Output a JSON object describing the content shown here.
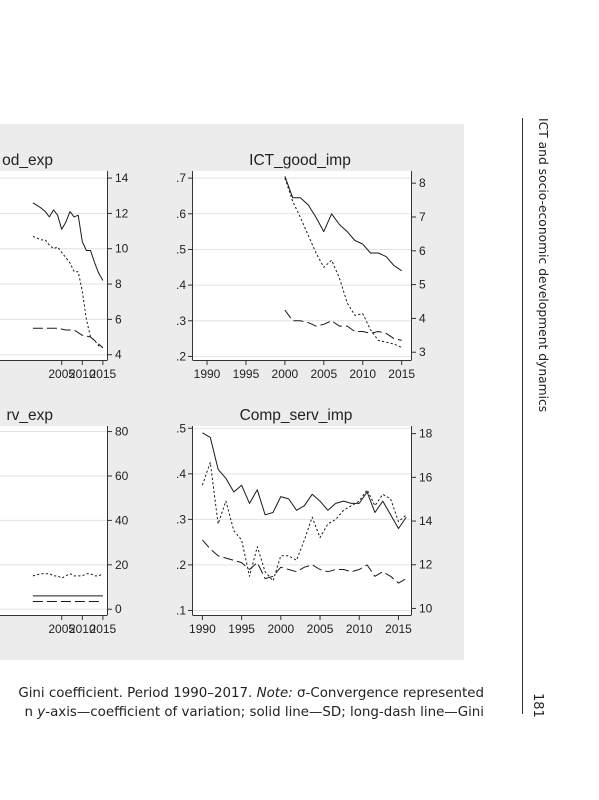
{
  "page": {
    "running_head": "ICT and socio-economic development dynamics",
    "page_number": "181",
    "caption_line1_pre": " Gini coefficient. Period 1990–2017. ",
    "caption_note_label": "Note:",
    "caption_line1_post": " σ-Convergence represented",
    "caption_line2_pre": "n ",
    "caption_axis_label": "y",
    "caption_line2_post": "-axis—coefficient of variation; solid line—SD; long-dash line—Gini"
  },
  "colors": {
    "panel_bg": "#ececec",
    "plot_bg": "#ffffff",
    "line": "#1a1a1a",
    "grid": "#e2e2e2"
  },
  "chart_data": [
    {
      "type": "line",
      "title": "od_exp",
      "clipped": true,
      "xlim": [
        1990,
        2016
      ],
      "x_ticks": [
        "2005",
        "2010",
        "2015"
      ],
      "x_tick_values": [
        2005,
        2010,
        2015
      ],
      "ylim_right": [
        3.7,
        14.4
      ],
      "y_right_ticks": [
        "4",
        "6",
        "8",
        "10",
        "12",
        "14"
      ],
      "y_right_tick_values": [
        4,
        6,
        8,
        10,
        12,
        14
      ],
      "series": [
        {
          "style": "solid",
          "axis": "right",
          "x": [
            1998,
            2000,
            2001,
            2002,
            2003,
            2004,
            2005,
            2006,
            2007,
            2008,
            2009,
            2010,
            2011,
            2012,
            2013,
            2014,
            2015
          ],
          "values": [
            12.6,
            12.3,
            12.1,
            11.8,
            12.2,
            11.9,
            11.1,
            11.5,
            12.1,
            11.8,
            11.9,
            10.4,
            9.9,
            9.9,
            9.2,
            8.6,
            8.2
          ]
        },
        {
          "style": "dotted",
          "axis": "right",
          "x": [
            1998,
            2000,
            2001,
            2002,
            2003,
            2004,
            2005,
            2006,
            2007,
            2008,
            2009,
            2010,
            2011,
            2012,
            2013,
            2014,
            2015
          ],
          "values": [
            10.7,
            10.5,
            10.5,
            10.2,
            10.0,
            10.1,
            9.8,
            9.5,
            9.2,
            8.7,
            8.7,
            7.6,
            6.0,
            5.0,
            4.8,
            4.5,
            4.4
          ]
        },
        {
          "style": "longdash",
          "axis": "right",
          "x": [
            1998,
            2000,
            2002,
            2004,
            2006,
            2008,
            2010,
            2012,
            2014,
            2015
          ],
          "values": [
            5.5,
            5.5,
            5.5,
            5.5,
            5.4,
            5.4,
            5.1,
            5.0,
            4.6,
            4.4
          ]
        }
      ]
    },
    {
      "type": "line",
      "title": "ICT_good_imp",
      "xlim": [
        1988.2,
        2016.2
      ],
      "x_ticks": [
        "1990",
        "1995",
        "2000",
        "2005",
        "2010",
        "2015"
      ],
      "x_tick_values": [
        1990,
        1995,
        2000,
        2005,
        2010,
        2015
      ],
      "ylim_left": [
        0.19,
        0.72
      ],
      "y_left_ticks": [
        ".2",
        ".3",
        ".4",
        ".5",
        ".6",
        ".7"
      ],
      "y_left_tick_values": [
        0.2,
        0.3,
        0.4,
        0.5,
        0.6,
        0.7
      ],
      "ylim_right": [
        2.77,
        8.36
      ],
      "y_right_ticks": [
        "3",
        "4",
        "5",
        "6",
        "7",
        "8"
      ],
      "y_right_tick_values": [
        3,
        4,
        5,
        6,
        7,
        8
      ],
      "series": [
        {
          "style": "solid",
          "axis": "left",
          "x": [
            2000,
            2001,
            2002,
            2003,
            2004,
            2005,
            2006,
            2007,
            2008,
            2009,
            2010,
            2011,
            2012,
            2013,
            2014,
            2015
          ],
          "values": [
            0.705,
            0.645,
            0.645,
            0.625,
            0.59,
            0.55,
            0.6,
            0.57,
            0.55,
            0.525,
            0.515,
            0.49,
            0.49,
            0.48,
            0.455,
            0.44
          ]
        },
        {
          "style": "dotted",
          "axis": "left",
          "x": [
            2000,
            2001,
            2002,
            2003,
            2004,
            2005,
            2006,
            2007,
            2008,
            2009,
            2010,
            2011,
            2012,
            2013,
            2014,
            2015
          ],
          "values": [
            0.7,
            0.635,
            0.59,
            0.54,
            0.49,
            0.45,
            0.47,
            0.42,
            0.35,
            0.315,
            0.32,
            0.275,
            0.245,
            0.24,
            0.235,
            0.225
          ]
        },
        {
          "style": "longdash",
          "axis": "left",
          "x": [
            2000,
            2001,
            2002,
            2003,
            2004,
            2005,
            2006,
            2007,
            2008,
            2009,
            2010,
            2011,
            2012,
            2013,
            2014,
            2015
          ],
          "values": [
            0.33,
            0.3,
            0.3,
            0.295,
            0.285,
            0.29,
            0.3,
            0.285,
            0.285,
            0.27,
            0.27,
            0.265,
            0.27,
            0.265,
            0.25,
            0.245
          ]
        }
      ]
    },
    {
      "type": "line",
      "title": "rv_exp",
      "clipped": true,
      "xlim": [
        1990,
        2016
      ],
      "x_ticks": [
        "2005",
        "2010",
        "2015"
      ],
      "x_tick_values": [
        2005,
        2010,
        2015
      ],
      "ylim_right": [
        -2.6,
        82.5
      ],
      "y_right_ticks": [
        "0",
        "20",
        "40",
        "60",
        "80"
      ],
      "y_right_tick_values": [
        0,
        20,
        40,
        60,
        80
      ],
      "series": [
        {
          "style": "dotted",
          "axis": "right",
          "x": [
            1998,
            2000,
            2002,
            2003,
            2004,
            2005,
            2006,
            2007,
            2008,
            2009,
            2010,
            2011,
            2012,
            2013,
            2014,
            2015
          ],
          "values": [
            15,
            16,
            16,
            15,
            15,
            14,
            15,
            16,
            15,
            15,
            15,
            16,
            16,
            15,
            15,
            16
          ]
        },
        {
          "style": "solid",
          "axis": "right",
          "x": [
            1998,
            2000,
            2002,
            2004,
            2006,
            2008,
            2010,
            2012,
            2014,
            2015
          ],
          "values": [
            6,
            6,
            6,
            6,
            6,
            6,
            6,
            6,
            6,
            6
          ]
        },
        {
          "style": "longdash",
          "axis": "right",
          "x": [
            1998,
            2000,
            2002,
            2004,
            2006,
            2008,
            2010,
            2012,
            2014,
            2015
          ],
          "values": [
            3.5,
            3.5,
            3.5,
            3.5,
            3.5,
            3.5,
            3.5,
            3.5,
            3.5,
            3.5
          ]
        }
      ]
    },
    {
      "type": "line",
      "title": "Comp_serv_imp",
      "xlim": [
        1988.8,
        2016.6
      ],
      "x_ticks": [
        "1990",
        "1995",
        "2000",
        "2005",
        "2010",
        "2015"
      ],
      "x_tick_values": [
        1990,
        1995,
        2000,
        2005,
        2010,
        2015
      ],
      "ylim_left": [
        0.09,
        0.505
      ],
      "y_left_ticks": [
        ".1",
        ".2",
        ".3",
        ".4",
        ".5"
      ],
      "y_left_tick_values": [
        0.1,
        0.2,
        0.3,
        0.4,
        0.5
      ],
      "ylim_right": [
        9.7,
        18.35
      ],
      "y_right_ticks": [
        "10",
        "12",
        "14",
        "16",
        "18"
      ],
      "y_right_tick_values": [
        10,
        12,
        14,
        16,
        18
      ],
      "series": [
        {
          "style": "solid",
          "axis": "left",
          "x": [
            1990,
            1991,
            1992,
            1993,
            1994,
            1995,
            1996,
            1997,
            1998,
            1999,
            2000,
            2001,
            2002,
            2003,
            2004,
            2005,
            2006,
            2007,
            2008,
            2009,
            2010,
            2011,
            2012,
            2013,
            2014,
            2015,
            2016
          ],
          "values": [
            0.49,
            0.48,
            0.41,
            0.39,
            0.36,
            0.375,
            0.335,
            0.365,
            0.31,
            0.315,
            0.35,
            0.345,
            0.32,
            0.33,
            0.355,
            0.34,
            0.32,
            0.335,
            0.34,
            0.335,
            0.335,
            0.36,
            0.315,
            0.34,
            0.31,
            0.28,
            0.305
          ]
        },
        {
          "style": "dotted",
          "axis": "left",
          "x": [
            1990,
            1991,
            1992,
            1993,
            1994,
            1995,
            1996,
            1997,
            1998,
            1999,
            2000,
            2001,
            2002,
            2003,
            2004,
            2005,
            2006,
            2007,
            2008,
            2009,
            2010,
            2011,
            2012,
            2013,
            2014,
            2015,
            2016
          ],
          "values": [
            0.375,
            0.425,
            0.29,
            0.34,
            0.275,
            0.255,
            0.175,
            0.24,
            0.185,
            0.165,
            0.22,
            0.22,
            0.21,
            0.255,
            0.305,
            0.26,
            0.29,
            0.3,
            0.32,
            0.33,
            0.34,
            0.365,
            0.33,
            0.355,
            0.345,
            0.295,
            0.31
          ]
        },
        {
          "style": "longdash",
          "axis": "left",
          "x": [
            1990,
            1991,
            1992,
            1993,
            1994,
            1995,
            1996,
            1997,
            1998,
            1999,
            2000,
            2001,
            2002,
            2003,
            2004,
            2005,
            2006,
            2007,
            2008,
            2009,
            2010,
            2011,
            2012,
            2013,
            2014,
            2015,
            2016
          ],
          "values": [
            0.255,
            0.235,
            0.22,
            0.215,
            0.21,
            0.205,
            0.19,
            0.205,
            0.17,
            0.175,
            0.195,
            0.19,
            0.185,
            0.195,
            0.2,
            0.19,
            0.185,
            0.19,
            0.19,
            0.185,
            0.19,
            0.2,
            0.175,
            0.185,
            0.175,
            0.16,
            0.17
          ]
        }
      ]
    }
  ]
}
